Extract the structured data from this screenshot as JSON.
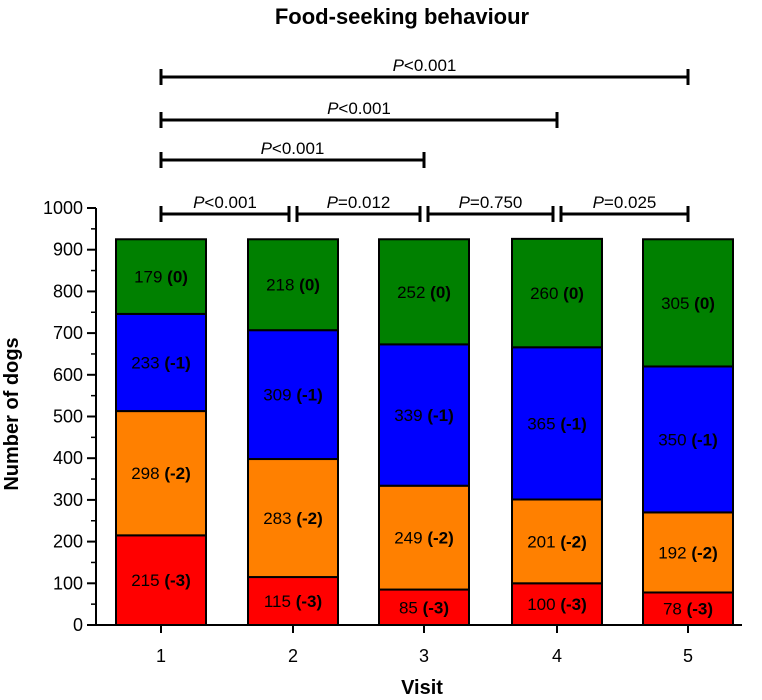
{
  "chart_data": {
    "type": "bar",
    "stacked": true,
    "title": "Food-seeking behaviour",
    "xlabel": "Visit",
    "ylabel": "Number of dogs",
    "categories": [
      "1",
      "2",
      "3",
      "4",
      "5"
    ],
    "ylim": [
      0,
      1000
    ],
    "yticks": [
      "0",
      "100",
      "200",
      "300",
      "400",
      "500",
      "600",
      "700",
      "800",
      "900",
      "1000"
    ],
    "series": [
      {
        "code": "(-3)",
        "color": "#ff0000",
        "values": [
          215,
          115,
          85,
          100,
          78
        ]
      },
      {
        "code": "(-2)",
        "color": "#ff8000",
        "values": [
          298,
          283,
          249,
          201,
          192
        ]
      },
      {
        "code": "(-1)",
        "color": "#0000ff",
        "values": [
          233,
          309,
          339,
          365,
          350
        ]
      },
      {
        "code": "(0)",
        "color": "#008000",
        "values": [
          179,
          218,
          252,
          260,
          305
        ]
      }
    ],
    "comparisons": [
      {
        "from": "1",
        "to": "2",
        "p_symbol": "P",
        "p_text": "<0.001"
      },
      {
        "from": "2",
        "to": "3",
        "p_symbol": "P",
        "p_text": "=0.012"
      },
      {
        "from": "3",
        "to": "4",
        "p_symbol": "P",
        "p_text": "=0.750"
      },
      {
        "from": "4",
        "to": "5",
        "p_symbol": "P",
        "p_text": "=0.025"
      },
      {
        "from": "1",
        "to": "3",
        "p_symbol": "P",
        "p_text": "<0.001"
      },
      {
        "from": "1",
        "to": "4",
        "p_symbol": "P",
        "p_text": "<0.001"
      },
      {
        "from": "1",
        "to": "5",
        "p_symbol": "P",
        "p_text": "<0.001"
      }
    ]
  }
}
